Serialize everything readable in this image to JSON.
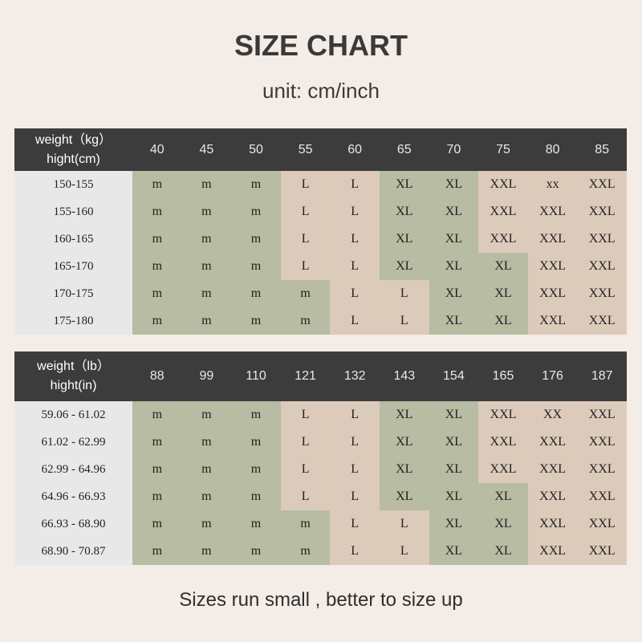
{
  "title": "SIZE CHART",
  "unit": "unit: cm/inch",
  "note": "Sizes run small , better to size up",
  "colors": {
    "header": "#3c3c3c",
    "m": "#b7bca2",
    "L": "#dccabb",
    "XL": "#b7bca2",
    "XXL": "#dccabb",
    "xx": "#dccabb",
    "XX": "#dccabb"
  },
  "tables": [
    {
      "corner_top": "weight（kg）",
      "corner_bottom": "hight(cm)",
      "columns": [
        "40",
        "45",
        "50",
        "55",
        "60",
        "65",
        "70",
        "75",
        "80",
        "85"
      ],
      "rows": [
        {
          "label": "150-155",
          "cells": [
            "m",
            "m",
            "m",
            "L",
            "L",
            "XL",
            "XL",
            "XXL",
            "xx",
            "XXL"
          ]
        },
        {
          "label": "155-160",
          "cells": [
            "m",
            "m",
            "m",
            "L",
            "L",
            "XL",
            "XL",
            "XXL",
            "XXL",
            "XXL"
          ]
        },
        {
          "label": "160-165",
          "cells": [
            "m",
            "m",
            "m",
            "L",
            "L",
            "XL",
            "XL",
            "XXL",
            "XXL",
            "XXL"
          ]
        },
        {
          "label": "165-170",
          "cells": [
            "m",
            "m",
            "m",
            "L",
            "L",
            "XL",
            "XL",
            "XL",
            "XXL",
            "XXL"
          ]
        },
        {
          "label": "170-175",
          "cells": [
            "m",
            "m",
            "m",
            "m",
            "L",
            "L",
            "XL",
            "XL",
            "XXL",
            "XXL"
          ]
        },
        {
          "label": "175-180",
          "cells": [
            "m",
            "m",
            "m",
            "m",
            "L",
            "L",
            "XL",
            "XL",
            "XXL",
            "XXL"
          ]
        }
      ]
    },
    {
      "corner_top": "weight（lb）",
      "corner_bottom": "hight(in)",
      "columns": [
        "88",
        "99",
        "110",
        "121",
        "132",
        "143",
        "154",
        "165",
        "176",
        "187"
      ],
      "rows": [
        {
          "label": "59.06 - 61.02",
          "cells": [
            "m",
            "m",
            "m",
            "L",
            "L",
            "XL",
            "XL",
            "XXL",
            "XX",
            "XXL"
          ]
        },
        {
          "label": "61.02 - 62.99",
          "cells": [
            "m",
            "m",
            "m",
            "L",
            "L",
            "XL",
            "XL",
            "XXL",
            "XXL",
            "XXL"
          ]
        },
        {
          "label": "62.99 - 64.96",
          "cells": [
            "m",
            "m",
            "m",
            "L",
            "L",
            "XL",
            "XL",
            "XXL",
            "XXL",
            "XXL"
          ]
        },
        {
          "label": "64.96 - 66.93",
          "cells": [
            "m",
            "m",
            "m",
            "L",
            "L",
            "XL",
            "XL",
            "XL",
            "XXL",
            "XXL"
          ]
        },
        {
          "label": "66.93 - 68.90",
          "cells": [
            "m",
            "m",
            "m",
            "m",
            "L",
            "L",
            "XL",
            "XL",
            "XXL",
            "XXL"
          ]
        },
        {
          "label": "68.90 - 70.87",
          "cells": [
            "m",
            "m",
            "m",
            "m",
            "L",
            "L",
            "XL",
            "XL",
            "XXL",
            "XXL"
          ]
        }
      ]
    }
  ]
}
